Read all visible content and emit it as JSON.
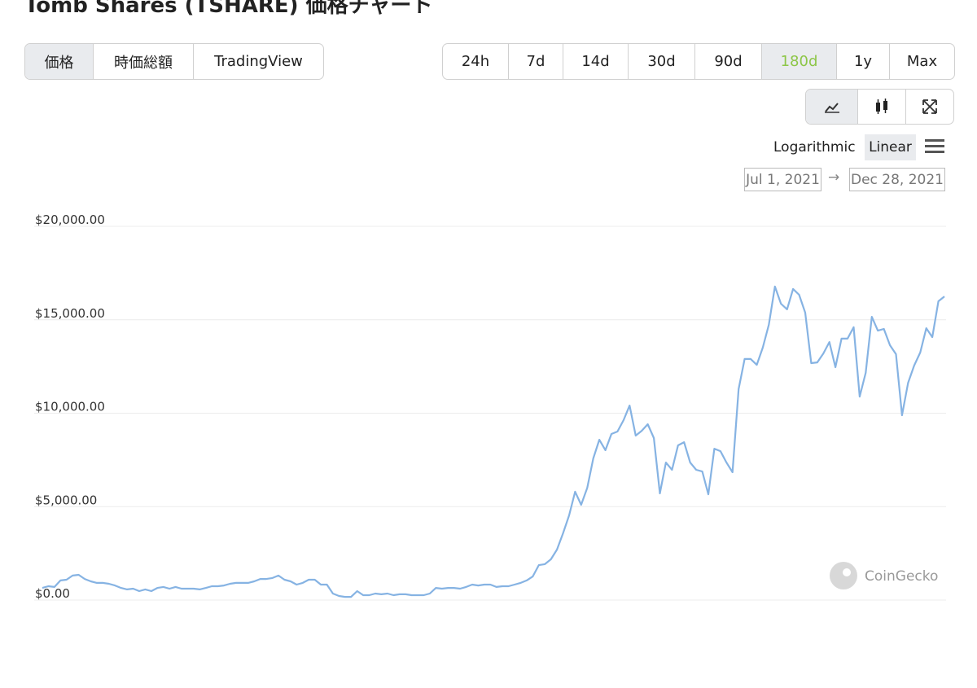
{
  "header": {
    "title": "Tomb Shares (TSHARE) 価格チャート"
  },
  "tabs": [
    "価格",
    "時価総額",
    "TradingView"
  ],
  "ranges": [
    "24h",
    "7d",
    "14d",
    "30d",
    "90d",
    "180d",
    "1y",
    "Max"
  ],
  "scales": [
    "Logarithmic",
    "Linear"
  ],
  "date_range": {
    "from": "Jul 1, 2021",
    "to": "Dec 28, 2021"
  },
  "watermark": "CoinGecko",
  "chart_data": {
    "type": "line",
    "color": "#86b3e3",
    "grid": true,
    "ylim": [
      0,
      20000
    ],
    "yticks": [
      {
        "value": 0,
        "label": "$0.00"
      },
      {
        "value": 5000,
        "label": "$5,000.00"
      },
      {
        "value": 10000,
        "label": "$10,000.00"
      },
      {
        "value": 15000,
        "label": "$15,000.00"
      },
      {
        "value": 20000,
        "label": "$20,000.00"
      }
    ],
    "values": [
      650,
      740,
      700,
      1050,
      1090,
      1310,
      1350,
      1130,
      1000,
      920,
      920,
      870,
      780,
      650,
      570,
      610,
      480,
      570,
      480,
      650,
      700,
      610,
      700,
      610,
      610,
      610,
      570,
      650,
      740,
      740,
      780,
      870,
      920,
      920,
      920,
      1000,
      1130,
      1130,
      1180,
      1310,
      1090,
      1000,
      830,
      920,
      1090,
      1090,
      830,
      830,
      350,
      220,
      170,
      170,
      480,
      260,
      260,
      350,
      310,
      350,
      260,
      310,
      310,
      260,
      260,
      260,
      350,
      650,
      610,
      650,
      650,
      610,
      700,
      830,
      780,
      830,
      830,
      700,
      740,
      740,
      830,
      920,
      1050,
      1260,
      1870,
      1920,
      2180,
      2700,
      3570,
      4530,
      5800,
      5100,
      6010,
      7580,
      8580,
      8020,
      8890,
      9020,
      9630,
      10410,
      8800,
      9060,
      9410,
      8670,
      5710,
      7360,
      6970,
      8280,
      8450,
      7360,
      6970,
      6880,
      5660,
      8100,
      7970,
      7360,
      6840,
      11290,
      12900,
      12900,
      12590,
      13510,
      14730,
      16780,
      15860,
      15560,
      16650,
      16340,
      15380,
      12680,
      12720,
      13200,
      13810,
      12460,
      13990,
      13990,
      14600,
      10890,
      12160,
      15160,
      14420,
      14510,
      13640,
      13160,
      9890,
      11630,
      12550,
      13250,
      14550,
      14070,
      15990,
      16250
    ]
  }
}
